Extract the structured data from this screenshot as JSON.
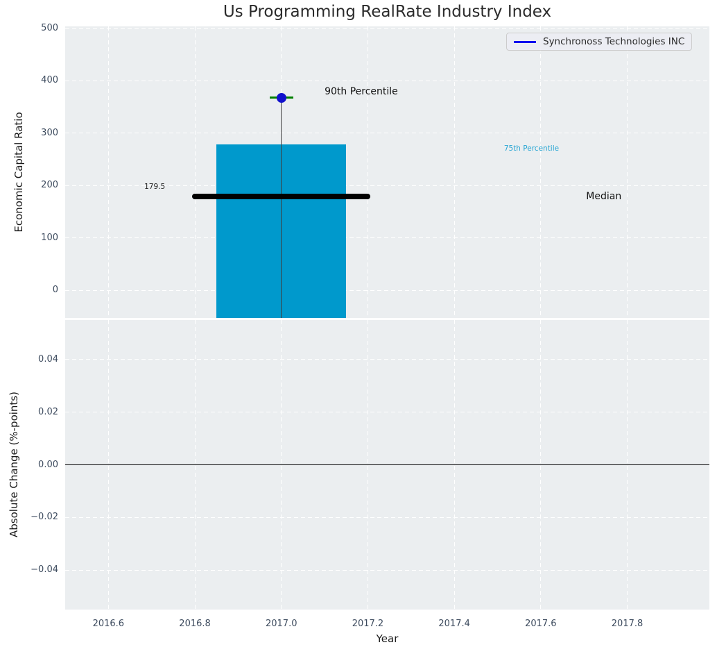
{
  "figure": {
    "title": "Us Programming RealRate Industry Index",
    "plot_bg": "#ebeef0",
    "grid_color": "#ffffff"
  },
  "legend": {
    "label": "Synchronoss Technologies INC",
    "line_color": "#0000ee",
    "location": "upper right"
  },
  "chart_data": [
    {
      "type": "bar",
      "ylabel": "Economic Capital Ratio",
      "xlabel": "",
      "xlim": [
        2016.5,
        2017.99
      ],
      "ylim": [
        -53,
        504
      ],
      "yticks": [
        500,
        400,
        300,
        200,
        100,
        0
      ],
      "ytick_labels": [
        "500",
        "400",
        "300",
        "200",
        "100",
        "0"
      ],
      "xticks": [
        2016.6,
        2016.8,
        2017.0,
        2017.2,
        2017.4,
        2017.6,
        2017.8
      ],
      "grid": true,
      "bar": {
        "x_center": 2017.0,
        "x_left": 2016.85,
        "x_right": 2017.15,
        "top_value": 278,
        "color": "#0099cc"
      },
      "median_line": {
        "value": 179.5,
        "x_start": 2016.8,
        "x_end": 2017.2,
        "color": "#000000"
      },
      "p90_marker": {
        "x": 2017.0,
        "value": 368,
        "dot_color": "#1111cc",
        "cap_color": "#007f00",
        "cap_half_width": 0.027,
        "stem_color": "#3d3d3d",
        "stem_bottom": -53
      },
      "annotations": [
        {
          "text": "90th Percentile",
          "x": 2017.1,
          "y": 380,
          "color": "#111111",
          "size": 14
        },
        {
          "text": "75th Percentile",
          "x": 2017.515,
          "y": 270,
          "color": "#26a5d3",
          "size": 10.5
        },
        {
          "text": "Median",
          "x": 2017.705,
          "y": 179.5,
          "color": "#111111",
          "size": 14
        },
        {
          "text": "179.5",
          "x": 2016.683,
          "y": 197,
          "color": "#222222",
          "size": 10.5
        }
      ]
    },
    {
      "type": "line",
      "ylabel": "Absolute Change (%-points)",
      "xlabel": "Year",
      "xlim": [
        2016.5,
        2017.99
      ],
      "ylim": [
        -0.055,
        0.055
      ],
      "yticks": [
        0.04,
        0.02,
        0,
        -0.02,
        -0.04
      ],
      "ytick_labels": [
        "0.04",
        "0.02",
        "0.00",
        "−0.02",
        "−0.04"
      ],
      "xticks": [
        2016.6,
        2016.8,
        2017.0,
        2017.2,
        2017.4,
        2017.6,
        2017.8
      ],
      "xtick_labels": [
        "2016.6",
        "2016.8",
        "2017.0",
        "2017.2",
        "2017.4",
        "2017.6",
        "2017.8"
      ],
      "grid": true,
      "series": [],
      "zero_line": {
        "value": 0,
        "color": "#000000"
      }
    }
  ]
}
